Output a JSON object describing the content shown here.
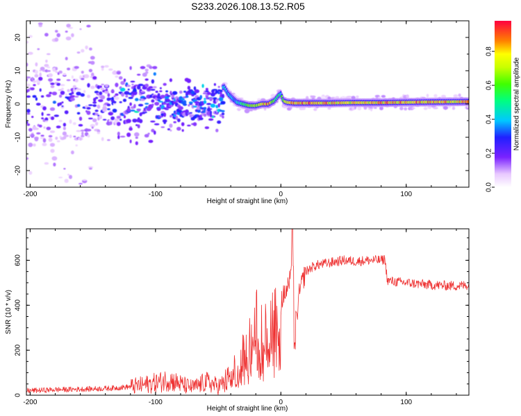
{
  "title": "S233.2026.108.13.52.R05",
  "chart_data": [
    {
      "type": "heatmap",
      "xlabel": "Height of straight line (km)",
      "ylabel": "Frequency (Hz)",
      "xlim": [
        -203,
        150
      ],
      "ylim": [
        -25,
        25
      ],
      "xticks": [
        -200,
        -100,
        0,
        100
      ],
      "xtick_labels": [
        "-200",
        "-100",
        "0",
        "100"
      ],
      "yticks": [
        -20,
        -10,
        0,
        10,
        20
      ],
      "ytick_labels": [
        "-20",
        "-10",
        "0",
        "10",
        "20"
      ],
      "ridge": {
        "description": "spectral peak frequency vs height",
        "x": [
          -45,
          -42,
          -38,
          -35,
          -30,
          -25,
          -20,
          -15,
          -10,
          -5,
          -2,
          0,
          2,
          5,
          10,
          20,
          40,
          60,
          80,
          100,
          120,
          150
        ],
        "freq": [
          5,
          3,
          1.5,
          0.5,
          0,
          -0.5,
          -0.5,
          0,
          0,
          1,
          2.5,
          3,
          1,
          0.5,
          0.3,
          0.3,
          0.3,
          0.4,
          0.4,
          0.5,
          0.6,
          0.7
        ],
        "amplitude": [
          0.4,
          0.4,
          0.35,
          0.4,
          0.5,
          0.6,
          0.7,
          0.8,
          0.85,
          0.6,
          0.5,
          0.45,
          0.7,
          0.75,
          0.8,
          0.85,
          0.8,
          0.75,
          0.8,
          0.85,
          0.8,
          0.8
        ]
      },
      "colorbar": {
        "label": "Normalized spectral amplitude",
        "range": [
          0,
          0.98
        ],
        "ticks": [
          0.0,
          0.2,
          0.4,
          0.6,
          0.8
        ],
        "tick_labels": [
          "0.0",
          "0.2",
          "0.4",
          "0.6",
          "0.8"
        ]
      }
    },
    {
      "type": "line",
      "xlabel": "Height of straight line (km)",
      "ylabel": "SNR (10 * v/v)",
      "xlim": [
        -203,
        150
      ],
      "ylim": [
        0,
        740
      ],
      "xticks": [
        -200,
        -100,
        0,
        100
      ],
      "xtick_labels": [
        "-200",
        "-100",
        "0",
        "100"
      ],
      "yticks": [
        0,
        200,
        400,
        600
      ],
      "ytick_labels": [
        "0",
        "200",
        "400",
        "600"
      ],
      "color": "#ee3030",
      "series": [
        {
          "name": "SNR",
          "x": [
            -203,
            -190,
            -180,
            -170,
            -160,
            -150,
            -140,
            -130,
            -120,
            -110,
            -100,
            -95,
            -90,
            -85,
            -80,
            -75,
            -70,
            -65,
            -60,
            -55,
            -50,
            -45,
            -40,
            -35,
            -30,
            -25,
            -22,
            -20,
            -18,
            -15,
            -12,
            -10,
            -8,
            -5,
            -2,
            0,
            2,
            5,
            8,
            10,
            12,
            15,
            18,
            20,
            25,
            30,
            40,
            50,
            60,
            70,
            80,
            83,
            85,
            90,
            100,
            110,
            120,
            130,
            140,
            150
          ],
          "values": [
            20,
            22,
            25,
            25,
            27,
            28,
            30,
            33,
            38,
            45,
            55,
            60,
            70,
            60,
            50,
            40,
            35,
            45,
            60,
            50,
            40,
            55,
            80,
            120,
            180,
            250,
            300,
            320,
            330,
            300,
            280,
            300,
            350,
            380,
            400,
            420,
            440,
            470,
            520,
            600,
            320,
            460,
            520,
            550,
            570,
            580,
            590,
            600,
            595,
            600,
            600,
            605,
            510,
            505,
            500,
            495,
            490,
            488,
            486,
            490
          ],
          "spike": {
            "x": 9,
            "value": 740,
            "dip_x": 11,
            "dip_value": 200
          }
        }
      ]
    }
  ]
}
